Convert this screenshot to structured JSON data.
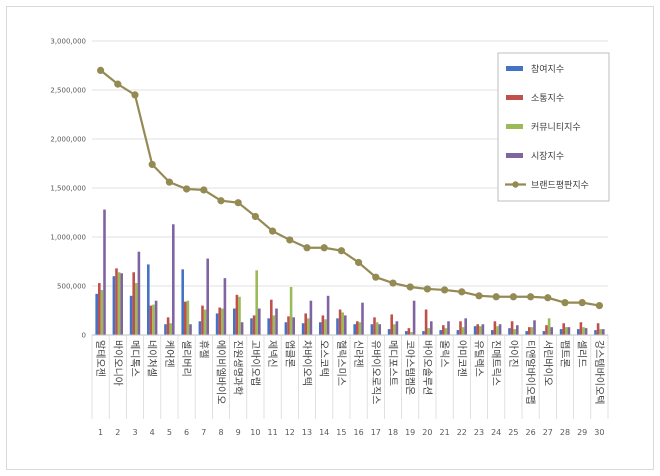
{
  "chart_data": {
    "type": "bar",
    "title": "",
    "xlabel": "",
    "ylabel": "",
    "ylim": [
      0,
      3000000
    ],
    "yticks": [
      "0",
      "500,000",
      "1,000,000",
      "1,500,000",
      "2,000,000",
      "2,500,000",
      "3,000,000"
    ],
    "categories": [
      "알테오젠",
      "바이오니아",
      "메디톡스",
      "네이처셀",
      "케어젠",
      "셀리버리",
      "휴젤",
      "에이비엘바이오",
      "진원생명과학",
      "고바이오랩",
      "제넥신",
      "앱클론",
      "차바이오텍",
      "오스코텍",
      "헬릭스미스",
      "신라젠",
      "유바이오로직스",
      "메디포스트",
      "코아스템켐온",
      "바이오솔루션",
      "올릭스",
      "아미코젠",
      "유틸렉스",
      "진매트릭스",
      "아이진",
      "티앤알바이오팹",
      "서린바이오",
      "펩트론",
      "셀리드",
      "강스템바이오텍"
    ],
    "ranks": [
      "1",
      "2",
      "3",
      "4",
      "5",
      "6",
      "7",
      "8",
      "9",
      "10",
      "11",
      "12",
      "13",
      "14",
      "15",
      "16",
      "17",
      "18",
      "19",
      "20",
      "21",
      "22",
      "23",
      "24",
      "25",
      "26",
      "27",
      "28",
      "29",
      "30"
    ],
    "legend_position": "right",
    "grid": true,
    "series": [
      {
        "name": "참여지수",
        "type": "bar",
        "color": "#4472c4",
        "values": [
          420000,
          600000,
          400000,
          720000,
          110000,
          670000,
          140000,
          220000,
          270000,
          170000,
          170000,
          130000,
          120000,
          130000,
          170000,
          110000,
          110000,
          60000,
          40000,
          40000,
          50000,
          50000,
          90000,
          50000,
          70000,
          40000,
          40000,
          60000,
          60000,
          50000
        ]
      },
      {
        "name": "소통지수",
        "type": "bar",
        "color": "#c0504d",
        "values": [
          530000,
          680000,
          640000,
          300000,
          180000,
          340000,
          300000,
          280000,
          410000,
          200000,
          360000,
          190000,
          220000,
          200000,
          260000,
          140000,
          180000,
          210000,
          70000,
          260000,
          100000,
          140000,
          110000,
          140000,
          140000,
          80000,
          100000,
          120000,
          130000,
          120000
        ]
      },
      {
        "name": "커뮤니티지수",
        "type": "bar",
        "color": "#9bbb59",
        "values": [
          460000,
          640000,
          530000,
          310000,
          120000,
          350000,
          260000,
          270000,
          390000,
          660000,
          200000,
          490000,
          170000,
          160000,
          230000,
          130000,
          130000,
          110000,
          30000,
          70000,
          70000,
          80000,
          90000,
          90000,
          60000,
          80000,
          170000,
          80000,
          80000,
          60000
        ]
      },
      {
        "name": "시장지수",
        "type": "bar",
        "color": "#8064a2",
        "values": [
          1280000,
          630000,
          850000,
          350000,
          1130000,
          110000,
          780000,
          580000,
          130000,
          270000,
          270000,
          180000,
          350000,
          400000,
          200000,
          330000,
          110000,
          140000,
          350000,
          140000,
          140000,
          170000,
          110000,
          110000,
          100000,
          150000,
          80000,
          80000,
          70000,
          60000
        ]
      },
      {
        "name": "브랜드평판지수",
        "type": "line",
        "color": "#948a54",
        "values": [
          2700000,
          2560000,
          2450000,
          1740000,
          1560000,
          1490000,
          1480000,
          1370000,
          1350000,
          1210000,
          1060000,
          970000,
          890000,
          890000,
          860000,
          740000,
          590000,
          530000,
          490000,
          470000,
          460000,
          440000,
          400000,
          390000,
          390000,
          390000,
          380000,
          330000,
          330000,
          300000
        ]
      }
    ]
  }
}
